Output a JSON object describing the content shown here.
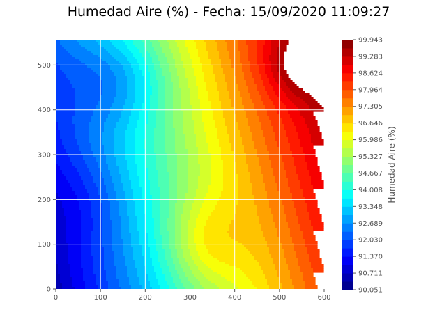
{
  "chart_data": {
    "type": "heatmap",
    "title": "Humedad Aire (%) - Fecha: 15/09/2020 11:09:27",
    "xlabel": "",
    "ylabel": "",
    "xlim": [
      0,
      600
    ],
    "ylim": [
      0,
      555
    ],
    "x_ticks": [
      0,
      100,
      200,
      300,
      400,
      500,
      600
    ],
    "y_ticks": [
      0,
      100,
      200,
      300,
      400,
      500
    ],
    "grid": true,
    "colormap": "jet",
    "colorbar": {
      "label": "Humedad Aire (%)",
      "min": 90.051,
      "max": 99.943,
      "tick_labels": [
        "90.051",
        "90.711",
        "91.370",
        "92.030",
        "92.689",
        "93.348",
        "94.008",
        "94.667",
        "95.327",
        "95.986",
        "96.646",
        "97.305",
        "97.964",
        "98.624",
        "99.283",
        "99.943"
      ]
    },
    "field_extrema": [
      {
        "kind": "min",
        "x": 70,
        "y": 200,
        "value": 90.05
      },
      {
        "kind": "max",
        "x": 540,
        "y": 500,
        "value": 99.94
      }
    ]
  }
}
